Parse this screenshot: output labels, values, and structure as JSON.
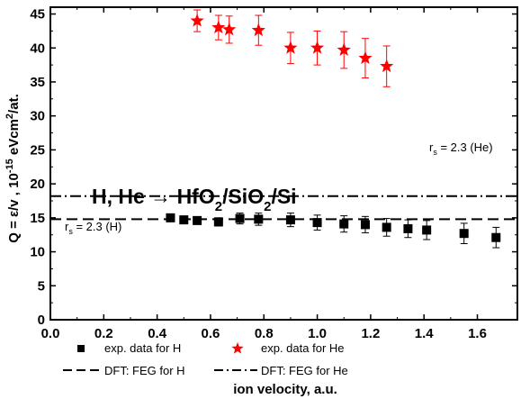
{
  "chart_data": {
    "type": "scatter",
    "xlabel": "ion velocity, a.u.",
    "ylabel": {
      "prefix": "Q = ε/v , 10",
      "exp": "-15",
      "mid": " eVcm",
      "exp2": "2",
      "suffix": "/at."
    },
    "xlim": [
      0.0,
      1.75
    ],
    "ylim": [
      0,
      46
    ],
    "xticks": [
      "0.0",
      "0.2",
      "0.4",
      "0.6",
      "0.8",
      "1.0",
      "1.2",
      "1.4",
      "1.6"
    ],
    "xtick_values": [
      0.0,
      0.2,
      0.4,
      0.6,
      0.8,
      1.0,
      1.2,
      1.4,
      1.6
    ],
    "yticks": [
      "0",
      "5",
      "10",
      "15",
      "20",
      "25",
      "30",
      "35",
      "40",
      "45"
    ],
    "ytick_values": [
      0,
      5,
      10,
      15,
      20,
      25,
      30,
      35,
      40,
      45
    ],
    "grid": false,
    "legend_position": "bottom",
    "annotation": {
      "main": "H, He → HfO",
      "sub1": "2",
      "mid": "/SiO",
      "sub2": "2",
      "end": "/Si"
    },
    "rs_He": {
      "r": "r",
      "s": "s",
      "text": " = 2.3 (He)"
    },
    "rs_H": {
      "r": "r",
      "s": "s",
      "text": " = 2.3 (H)"
    },
    "series": [
      {
        "name": "exp. data for H",
        "marker": "square",
        "color": "#000000",
        "points": [
          {
            "x": 0.45,
            "y": 15.0,
            "err": 0.5
          },
          {
            "x": 0.5,
            "y": 14.7,
            "err": 0.5
          },
          {
            "x": 0.55,
            "y": 14.6,
            "err": 0.5
          },
          {
            "x": 0.63,
            "y": 14.4,
            "err": 0.6
          },
          {
            "x": 0.71,
            "y": 14.9,
            "err": 0.8
          },
          {
            "x": 0.78,
            "y": 14.8,
            "err": 0.9
          },
          {
            "x": 0.9,
            "y": 14.7,
            "err": 1.0
          },
          {
            "x": 1.0,
            "y": 14.3,
            "err": 1.1
          },
          {
            "x": 1.1,
            "y": 14.1,
            "err": 1.2
          },
          {
            "x": 1.18,
            "y": 14.0,
            "err": 1.2
          },
          {
            "x": 1.26,
            "y": 13.6,
            "err": 1.3
          },
          {
            "x": 1.34,
            "y": 13.4,
            "err": 1.3
          },
          {
            "x": 1.41,
            "y": 13.2,
            "err": 1.4
          },
          {
            "x": 1.55,
            "y": 12.7,
            "err": 1.5
          },
          {
            "x": 1.67,
            "y": 12.1,
            "err": 1.5
          }
        ]
      },
      {
        "name": "exp. data for He",
        "marker": "star",
        "color": "#ff0000",
        "points": [
          {
            "x": 0.55,
            "y": 44.0,
            "err": 1.6
          },
          {
            "x": 0.63,
            "y": 43.0,
            "err": 1.8
          },
          {
            "x": 0.67,
            "y": 42.7,
            "err": 2.0
          },
          {
            "x": 0.78,
            "y": 42.6,
            "err": 2.2
          },
          {
            "x": 0.9,
            "y": 40.0,
            "err": 2.3
          },
          {
            "x": 1.0,
            "y": 40.0,
            "err": 2.5
          },
          {
            "x": 1.1,
            "y": 39.7,
            "err": 2.7
          },
          {
            "x": 1.18,
            "y": 38.5,
            "err": 2.9
          },
          {
            "x": 1.26,
            "y": 37.3,
            "err": 3.0
          }
        ]
      },
      {
        "name": "DFT: FEG for H",
        "type": "hline",
        "style": "dashed",
        "color": "#000000",
        "y": 14.8
      },
      {
        "name": "DFT: FEG for He",
        "type": "hline",
        "style": "dashdot",
        "color": "#000000",
        "y": 18.2
      }
    ]
  }
}
